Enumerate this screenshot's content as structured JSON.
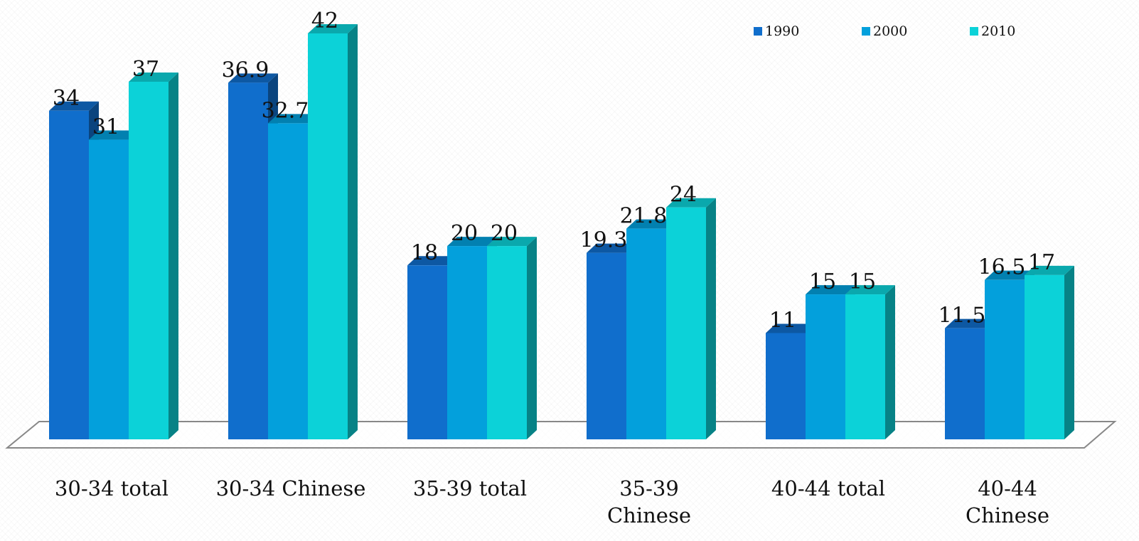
{
  "chart_data": {
    "type": "bar",
    "title": "",
    "xlabel": "",
    "ylabel": "",
    "ylim": [
      0,
      42
    ],
    "grid": false,
    "legend_position": "top-right",
    "categories": [
      [
        "30-34 total"
      ],
      [
        "30-34 Chinese"
      ],
      [
        "35-39 total"
      ],
      [
        "35-39",
        "Chinese"
      ],
      [
        "40-44 total"
      ],
      [
        "40-44",
        "Chinese"
      ]
    ],
    "series": [
      {
        "name": "1990",
        "values": [
          34,
          36.9,
          18,
          19.3,
          11,
          11.5
        ],
        "labels": [
          "34",
          "36.9",
          "18",
          "19.3",
          "11",
          "11.5"
        ],
        "color": "#106ECC"
      },
      {
        "name": "2000",
        "values": [
          31,
          32.7,
          20,
          21.8,
          15,
          16.5
        ],
        "labels": [
          "31",
          "32.7",
          "20",
          "21.8",
          "15",
          "16.5"
        ],
        "color": "#03A0DC"
      },
      {
        "name": "2010",
        "values": [
          37,
          42,
          20,
          24,
          15,
          17
        ],
        "labels": [
          "37",
          "42",
          "20",
          "24",
          "15",
          "17"
        ],
        "color": "#0CD2D8"
      }
    ]
  }
}
